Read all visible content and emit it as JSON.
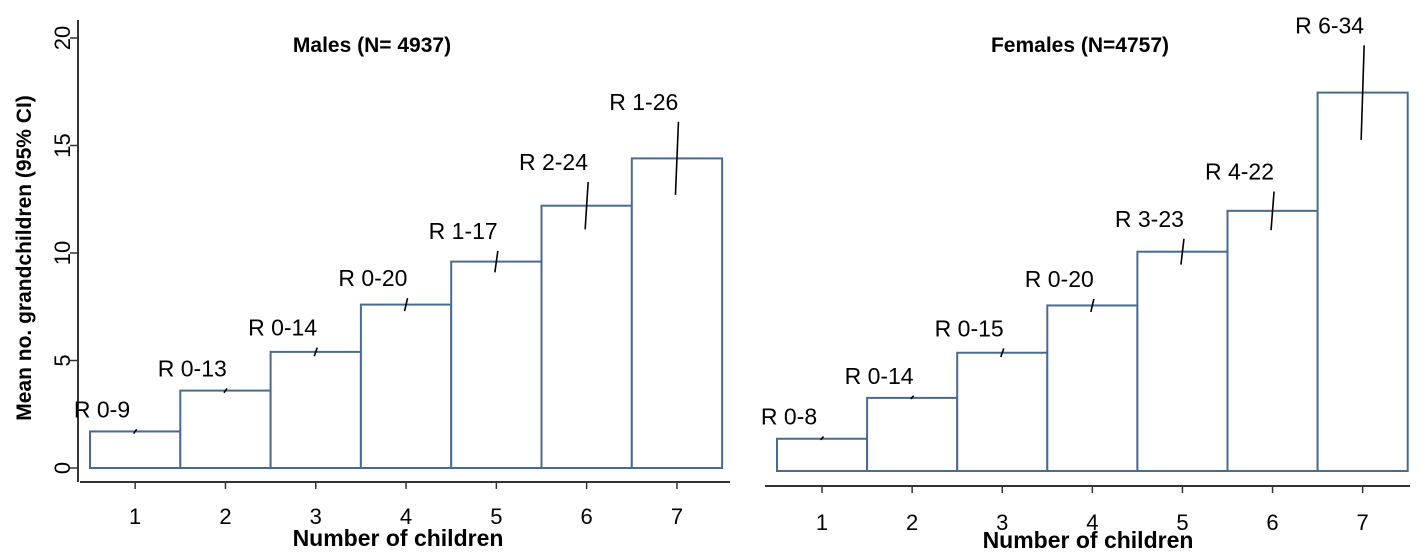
{
  "colors": {
    "bar_edge": "#4a6b8f",
    "axis": "#333333",
    "ci": "#000000"
  },
  "chart_data": [
    {
      "type": "bar",
      "title": "Males (N= 4937)",
      "xlabel": "Number of children",
      "ylabel": "Mean no. grandchildren (95% CI)",
      "categories": [
        "1",
        "2",
        "3",
        "4",
        "5",
        "6",
        "7"
      ],
      "values": [
        1.7,
        3.6,
        5.4,
        7.6,
        9.6,
        12.2,
        14.4
      ],
      "ci_low": [
        1.6,
        3.5,
        5.2,
        7.3,
        9.1,
        11.1,
        12.7
      ],
      "ci_high": [
        1.8,
        3.7,
        5.6,
        7.9,
        10.1,
        13.3,
        16.1
      ],
      "range_labels": [
        "R 0-9",
        "R 0-13",
        "R 0-14",
        "R 0-20",
        "R 1-17",
        "R 2-24",
        "R 1-26"
      ],
      "ylim": [
        0,
        20
      ],
      "yticks": [
        "0",
        "5",
        "10",
        "15",
        "20"
      ],
      "grid": false
    },
    {
      "type": "bar",
      "title": "Females (N=4757)",
      "xlabel": "Number of children",
      "ylabel": "",
      "categories": [
        "1",
        "2",
        "3",
        "4",
        "5",
        "6",
        "7"
      ],
      "values": [
        1.5,
        3.4,
        5.5,
        7.7,
        10.2,
        12.1,
        17.6
      ],
      "ci_low": [
        1.45,
        3.35,
        5.3,
        7.4,
        9.6,
        11.2,
        15.4
      ],
      "ci_high": [
        1.6,
        3.5,
        5.7,
        8.0,
        10.8,
        13.0,
        19.8
      ],
      "range_labels": [
        "R 0-8",
        "R 0-14",
        "R 0-15",
        "R 0-20",
        "R 3-23",
        "R 4-22",
        "R 6-34"
      ],
      "ylim": [
        0,
        20
      ],
      "yticks": [],
      "grid": false
    }
  ]
}
